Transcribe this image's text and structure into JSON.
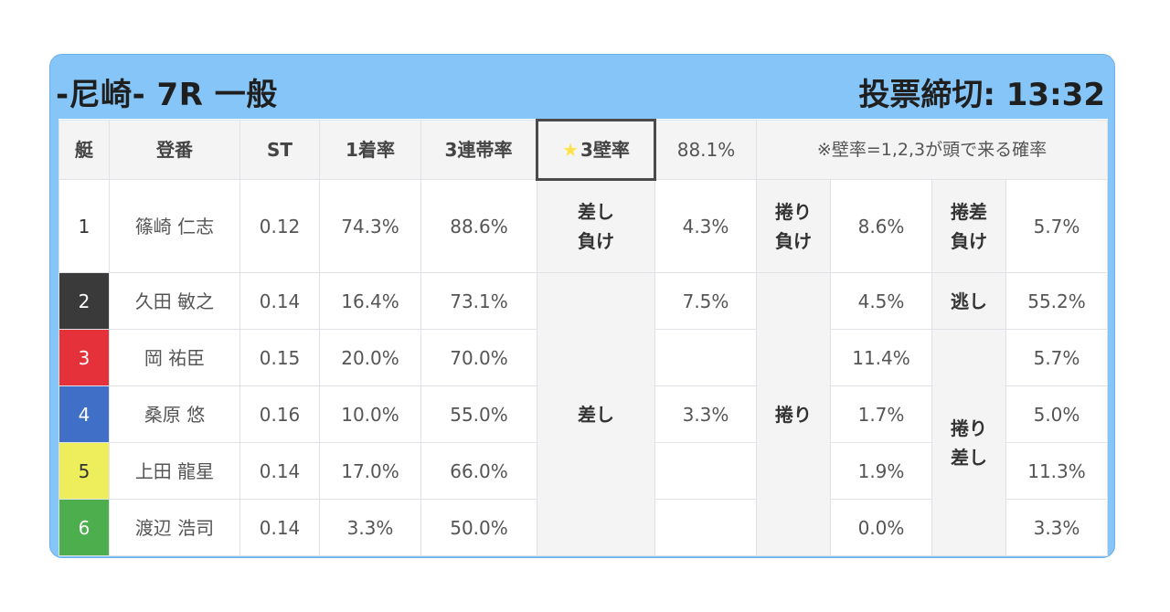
{
  "header": {
    "race": "-尼崎- 7R 一般",
    "deadline": "投票締切: 13:32"
  },
  "table": {
    "columns": [
      "艇",
      "登番",
      "ST",
      "1着率",
      "3連帯率"
    ],
    "wall_label": "3壁率",
    "wall_rate": "88.1%",
    "note": "※壁率=1,2,3が頭で来る確率",
    "rows": [
      {
        "boat": "1",
        "name": "篠崎 仁志",
        "st": "0.12",
        "win": "74.3%",
        "top3": "88.6%"
      },
      {
        "boat": "2",
        "name": "久田 敏之",
        "st": "0.14",
        "win": "16.4%",
        "top3": "73.1%"
      },
      {
        "boat": "3",
        "name": "岡 祐臣",
        "st": "0.15",
        "win": "20.0%",
        "top3": "70.0%"
      },
      {
        "boat": "4",
        "name": "桑原 悠",
        "st": "0.16",
        "win": "10.0%",
        "top3": "55.0%"
      },
      {
        "boat": "5",
        "name": "上田 龍星",
        "st": "0.14",
        "win": "17.0%",
        "top3": "66.0%"
      },
      {
        "boat": "6",
        "name": "渡辺 浩司",
        "st": "0.14",
        "win": "3.3%",
        "top3": "50.0%"
      }
    ],
    "row1": {
      "sashi_make": [
        "差し",
        "負け"
      ],
      "sashi_make_val": "4.3%",
      "makuri_make": [
        "捲り",
        "負け"
      ],
      "makuri_make_val": "8.6%",
      "makurisashi_make": [
        "捲差",
        "負け"
      ],
      "makurisashi_make_val": "5.7%"
    },
    "sashi_label": "差し",
    "sashi_vals": {
      "r2": "7.5%",
      "r4": "3.3%"
    },
    "makuri_label": "捲り",
    "makuri_vals": {
      "r2": "4.5%",
      "r3": "11.4%",
      "r4": "1.7%",
      "r5": "1.9%",
      "r6": "0.0%"
    },
    "nige_label": "逃し",
    "nige_val": "55.2%",
    "makurisashi_label": [
      "捲り",
      "差し"
    ],
    "makurisashi_vals": {
      "r3": "5.7%",
      "r4": "5.0%",
      "r5": "11.3%",
      "r6": "3.3%"
    }
  },
  "colors": {
    "panel": "#86c5f7",
    "star_cell": "#eca225",
    "boat1": "#ffffff",
    "boat2": "#3a3a3a",
    "boat3": "#e5323a",
    "boat4": "#3f6fc6",
    "boat5": "#eeee5c",
    "boat6": "#4cae4c"
  }
}
